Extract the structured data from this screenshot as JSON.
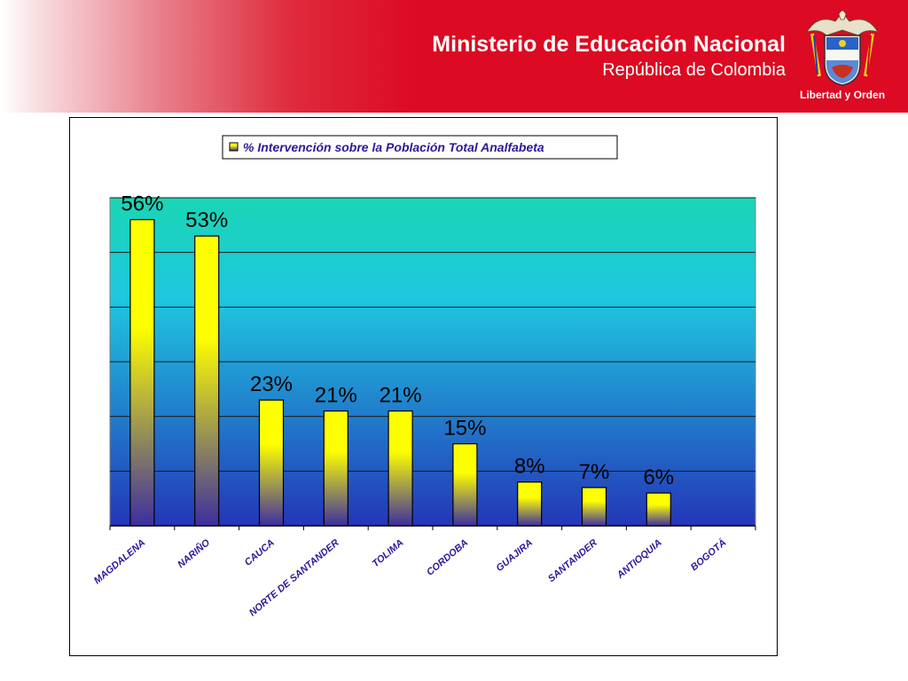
{
  "header": {
    "title": "Ministerio de Educación Nacional",
    "subtitle": "República de Colombia",
    "motto": "Libertad y Orden",
    "crest_icon": "colombia-coat-of-arms-icon",
    "brand_color": "#dc0a22"
  },
  "chart_data": {
    "type": "bar",
    "title": "",
    "xlabel": "",
    "ylabel": "",
    "categories": [
      "MAGDALENA",
      "NARIÑO",
      "CAUCA",
      "NORTE DE SANTANDER",
      "TOLIMA",
      "CORDOBA",
      "GUAJIRA",
      "SANTANDER",
      "ANTIOQUIA",
      "BOGOTÁ"
    ],
    "series": [
      {
        "name": "% Intervención sobre la Población Total Analfabeta",
        "values": [
          56,
          53,
          23,
          21,
          21,
          15,
          8,
          7,
          6,
          null
        ],
        "labels": [
          "56%",
          "53%",
          "23%",
          "21%",
          "21%",
          "15%",
          "8%",
          "7%",
          "6%",
          ""
        ]
      }
    ],
    "ylim": [
      0,
      60
    ],
    "grid": true,
    "legend": "top-center",
    "colors": {
      "bar_top": "#ffff00",
      "bar_bottom": "#3c2ea0",
      "plot_top": "#1ad6b4",
      "plot_mid": "#1ec8e0",
      "plot_bottom": "#2436b8"
    }
  }
}
